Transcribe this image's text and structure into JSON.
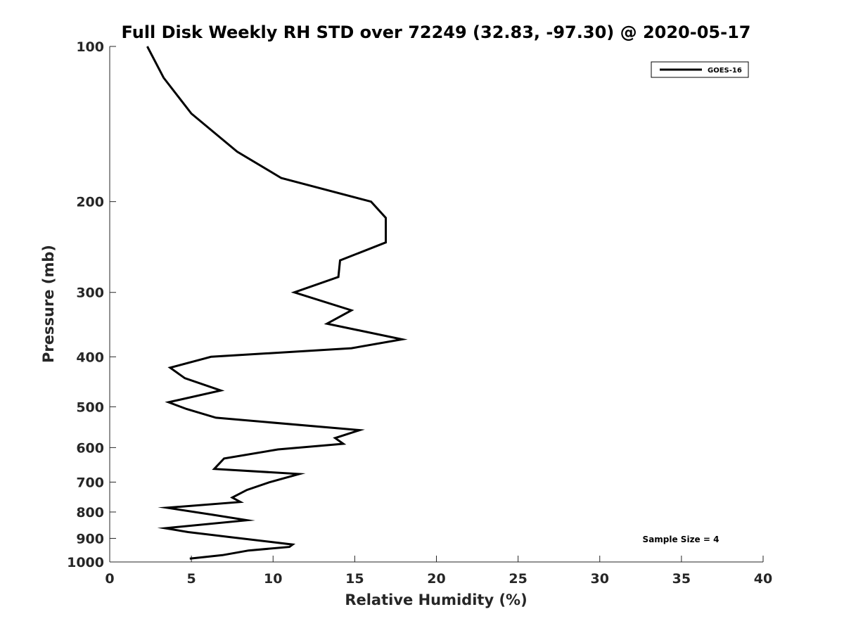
{
  "chart_data": {
    "type": "line",
    "title": "Full Disk Weekly RH STD over 72249 (32.83, -97.30) @ 2020-05-17",
    "xlabel": "Relative Humidity (%)",
    "ylabel": "Pressure (mb)",
    "xlim": [
      0,
      40
    ],
    "ylim": [
      1000,
      100
    ],
    "y_scale": "log",
    "x_ticks": [
      "0",
      "5",
      "10",
      "15",
      "20",
      "25",
      "30",
      "35",
      "40"
    ],
    "y_ticks": [
      "100",
      "200",
      "300",
      "400",
      "500",
      "600",
      "700",
      "800",
      "900",
      "1000"
    ],
    "grid": false,
    "legend": {
      "position": "top-right",
      "entries": [
        "GOES-16"
      ]
    },
    "annotation": "Sample Size = 4",
    "series": [
      {
        "name": "GOES-16",
        "color": "#000000",
        "points": [
          [
            2.3,
            100
          ],
          [
            3.3,
            115
          ],
          [
            5.0,
            135
          ],
          [
            7.8,
            160
          ],
          [
            10.5,
            180
          ],
          [
            16.0,
            200
          ],
          [
            16.9,
            215
          ],
          [
            16.9,
            240
          ],
          [
            14.1,
            260
          ],
          [
            14.0,
            280
          ],
          [
            11.3,
            300
          ],
          [
            14.8,
            325
          ],
          [
            13.3,
            345
          ],
          [
            17.9,
            370
          ],
          [
            14.8,
            385
          ],
          [
            6.2,
            400
          ],
          [
            3.7,
            420
          ],
          [
            4.6,
            440
          ],
          [
            6.8,
            465
          ],
          [
            3.6,
            490
          ],
          [
            4.7,
            505
          ],
          [
            6.5,
            525
          ],
          [
            15.3,
            555
          ],
          [
            13.8,
            575
          ],
          [
            14.3,
            590
          ],
          [
            10.3,
            605
          ],
          [
            7.0,
            630
          ],
          [
            6.4,
            660
          ],
          [
            11.6,
            675
          ],
          [
            9.8,
            700
          ],
          [
            8.4,
            725
          ],
          [
            7.5,
            750
          ],
          [
            8.0,
            765
          ],
          [
            3.5,
            785
          ],
          [
            6.3,
            810
          ],
          [
            8.4,
            830
          ],
          [
            3.4,
            860
          ],
          [
            4.8,
            875
          ],
          [
            7.4,
            895
          ],
          [
            11.2,
            925
          ],
          [
            11.0,
            935
          ],
          [
            8.5,
            950
          ],
          [
            6.9,
            970
          ],
          [
            4.9,
            985
          ]
        ]
      }
    ]
  }
}
